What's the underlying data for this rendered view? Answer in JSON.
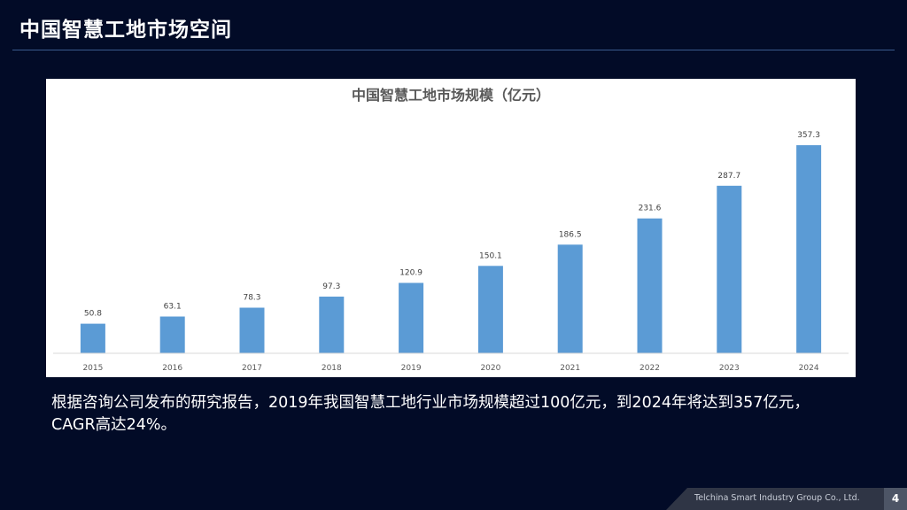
{
  "slide": {
    "title": "中国智慧工地市场空间",
    "description": "根据咨询公司发布的研究报告，2019年我国智慧工地行业市场规模超过100亿元，到2024年将达到357亿元，CAGR高达24%。",
    "footer_company": "Telchina Smart Industry Group Co., Ltd.",
    "page_number": "4"
  },
  "colors": {
    "background": "#020b27",
    "bar": "#5b9bd5",
    "panel": "#ffffff"
  },
  "chart_data": {
    "type": "bar",
    "title": "中国智慧工地市场规模（亿元）",
    "categories": [
      "2015",
      "2016",
      "2017",
      "2018",
      "2019",
      "2020",
      "2021",
      "2022",
      "2023",
      "2024"
    ],
    "series": [
      {
        "values": [
          50.8,
          63.1,
          78.3,
          97.3,
          120.9,
          150.1,
          186.5,
          231.6,
          287.7,
          357.3
        ]
      }
    ],
    "data_labels": [
      "50.8",
      "63.1",
      "78.3",
      "97.3",
      "120.9",
      "150.1",
      "186.5",
      "231.6",
      "287.7",
      "357.3"
    ],
    "ylim": [
      0,
      357.3
    ],
    "grid": false,
    "legend": "none"
  }
}
